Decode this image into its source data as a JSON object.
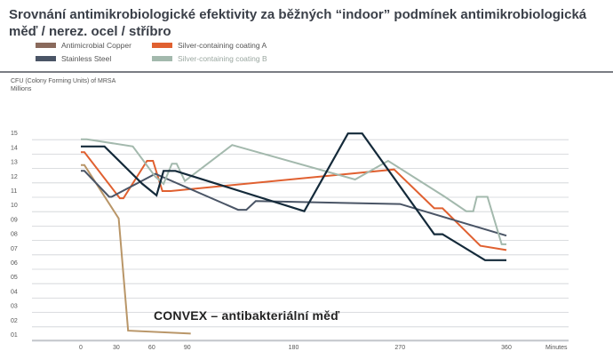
{
  "title": "Srovnání antimikrobiologické efektivity za běžných “indoor” podmínek antimikrobiologická měď / nerez. ocel / stříbro",
  "annotation": "CONVEX – antibakteriální měď",
  "legend": [
    {
      "label": "Antimicrobial Copper",
      "color": "#8a6a5c"
    },
    {
      "label": "Silver-containing coating A",
      "color": "#e06030"
    },
    {
      "label": "Stainless Steel",
      "color": "#4a5566"
    },
    {
      "label": "Silver-containing coating B",
      "color": "#a3b9ad"
    }
  ],
  "chart_data": {
    "type": "line",
    "ylabel": "CFU (Colony Forming Units) of MRSA",
    "yunit": "Millions",
    "xlabel": "Minutes",
    "xlim": [
      0,
      390
    ],
    "ylim": [
      0.5,
      15
    ],
    "x_ticks": [
      0,
      30,
      60,
      90,
      180,
      270,
      360
    ],
    "y_ticks": [
      "01",
      "02",
      "03",
      "04",
      "05",
      "06",
      "07",
      "08",
      "09",
      "10",
      "11",
      "12",
      "13",
      "14",
      "15"
    ],
    "series": [
      {
        "name": "Antimicrobial Copper",
        "color": "#b99668",
        "width": 2,
        "points": [
          [
            0,
            12.8
          ],
          [
            3,
            12.8
          ],
          [
            32,
            9.1
          ],
          [
            40,
            1.3
          ],
          [
            93,
            1.1
          ]
        ]
      },
      {
        "name": "Silver-containing coating A",
        "color": "#e06030",
        "width": 2,
        "points": [
          [
            0,
            13.7
          ],
          [
            3,
            13.7
          ],
          [
            33,
            10.5
          ],
          [
            36,
            10.5
          ],
          [
            56,
            13.1
          ],
          [
            61,
            13.1
          ],
          [
            69,
            11.0
          ],
          [
            76,
            11.0
          ],
          [
            265,
            12.5
          ],
          [
            299,
            9.8
          ],
          [
            306,
            9.8
          ],
          [
            338,
            7.2
          ],
          [
            360,
            6.9
          ]
        ]
      },
      {
        "name": "Stainless Steel",
        "color": "#4a5566",
        "width": 2,
        "points": [
          [
            0,
            12.4
          ],
          [
            3,
            12.4
          ],
          [
            24,
            10.6
          ],
          [
            26,
            10.6
          ],
          [
            63,
            12.2
          ],
          [
            133,
            9.7
          ],
          [
            140,
            9.7
          ],
          [
            148,
            10.3
          ],
          [
            270,
            10.1
          ],
          [
            360,
            7.9
          ]
        ]
      },
      {
        "name": "Silver-containing coating B",
        "color": "#a3b9ad",
        "width": 2,
        "points": [
          [
            0,
            14.6
          ],
          [
            5,
            14.6
          ],
          [
            44,
            14.1
          ],
          [
            63,
            12.0
          ],
          [
            70,
            11.5
          ],
          [
            77,
            12.9
          ],
          [
            81,
            12.9
          ],
          [
            88,
            11.7
          ],
          [
            128,
            14.2
          ],
          [
            232,
            11.8
          ],
          [
            260,
            13.1
          ],
          [
            308,
            10.6
          ],
          [
            326,
            9.6
          ],
          [
            332,
            9.6
          ],
          [
            335,
            10.6
          ],
          [
            344,
            10.6
          ],
          [
            356,
            7.3
          ],
          [
            360,
            7.3
          ]
        ]
      },
      {
        "name": "",
        "color": "#142a3a",
        "width": 2.2,
        "points": [
          [
            0,
            14.1
          ],
          [
            20,
            14.1
          ],
          [
            52,
            11.5
          ],
          [
            64,
            10.7
          ],
          [
            70,
            12.4
          ],
          [
            80,
            12.4
          ],
          [
            189,
            9.6
          ],
          [
            226,
            15.0
          ],
          [
            238,
            15.0
          ],
          [
            299,
            8.0
          ],
          [
            306,
            8.0
          ],
          [
            342,
            6.2
          ],
          [
            360,
            6.2
          ]
        ]
      }
    ]
  }
}
